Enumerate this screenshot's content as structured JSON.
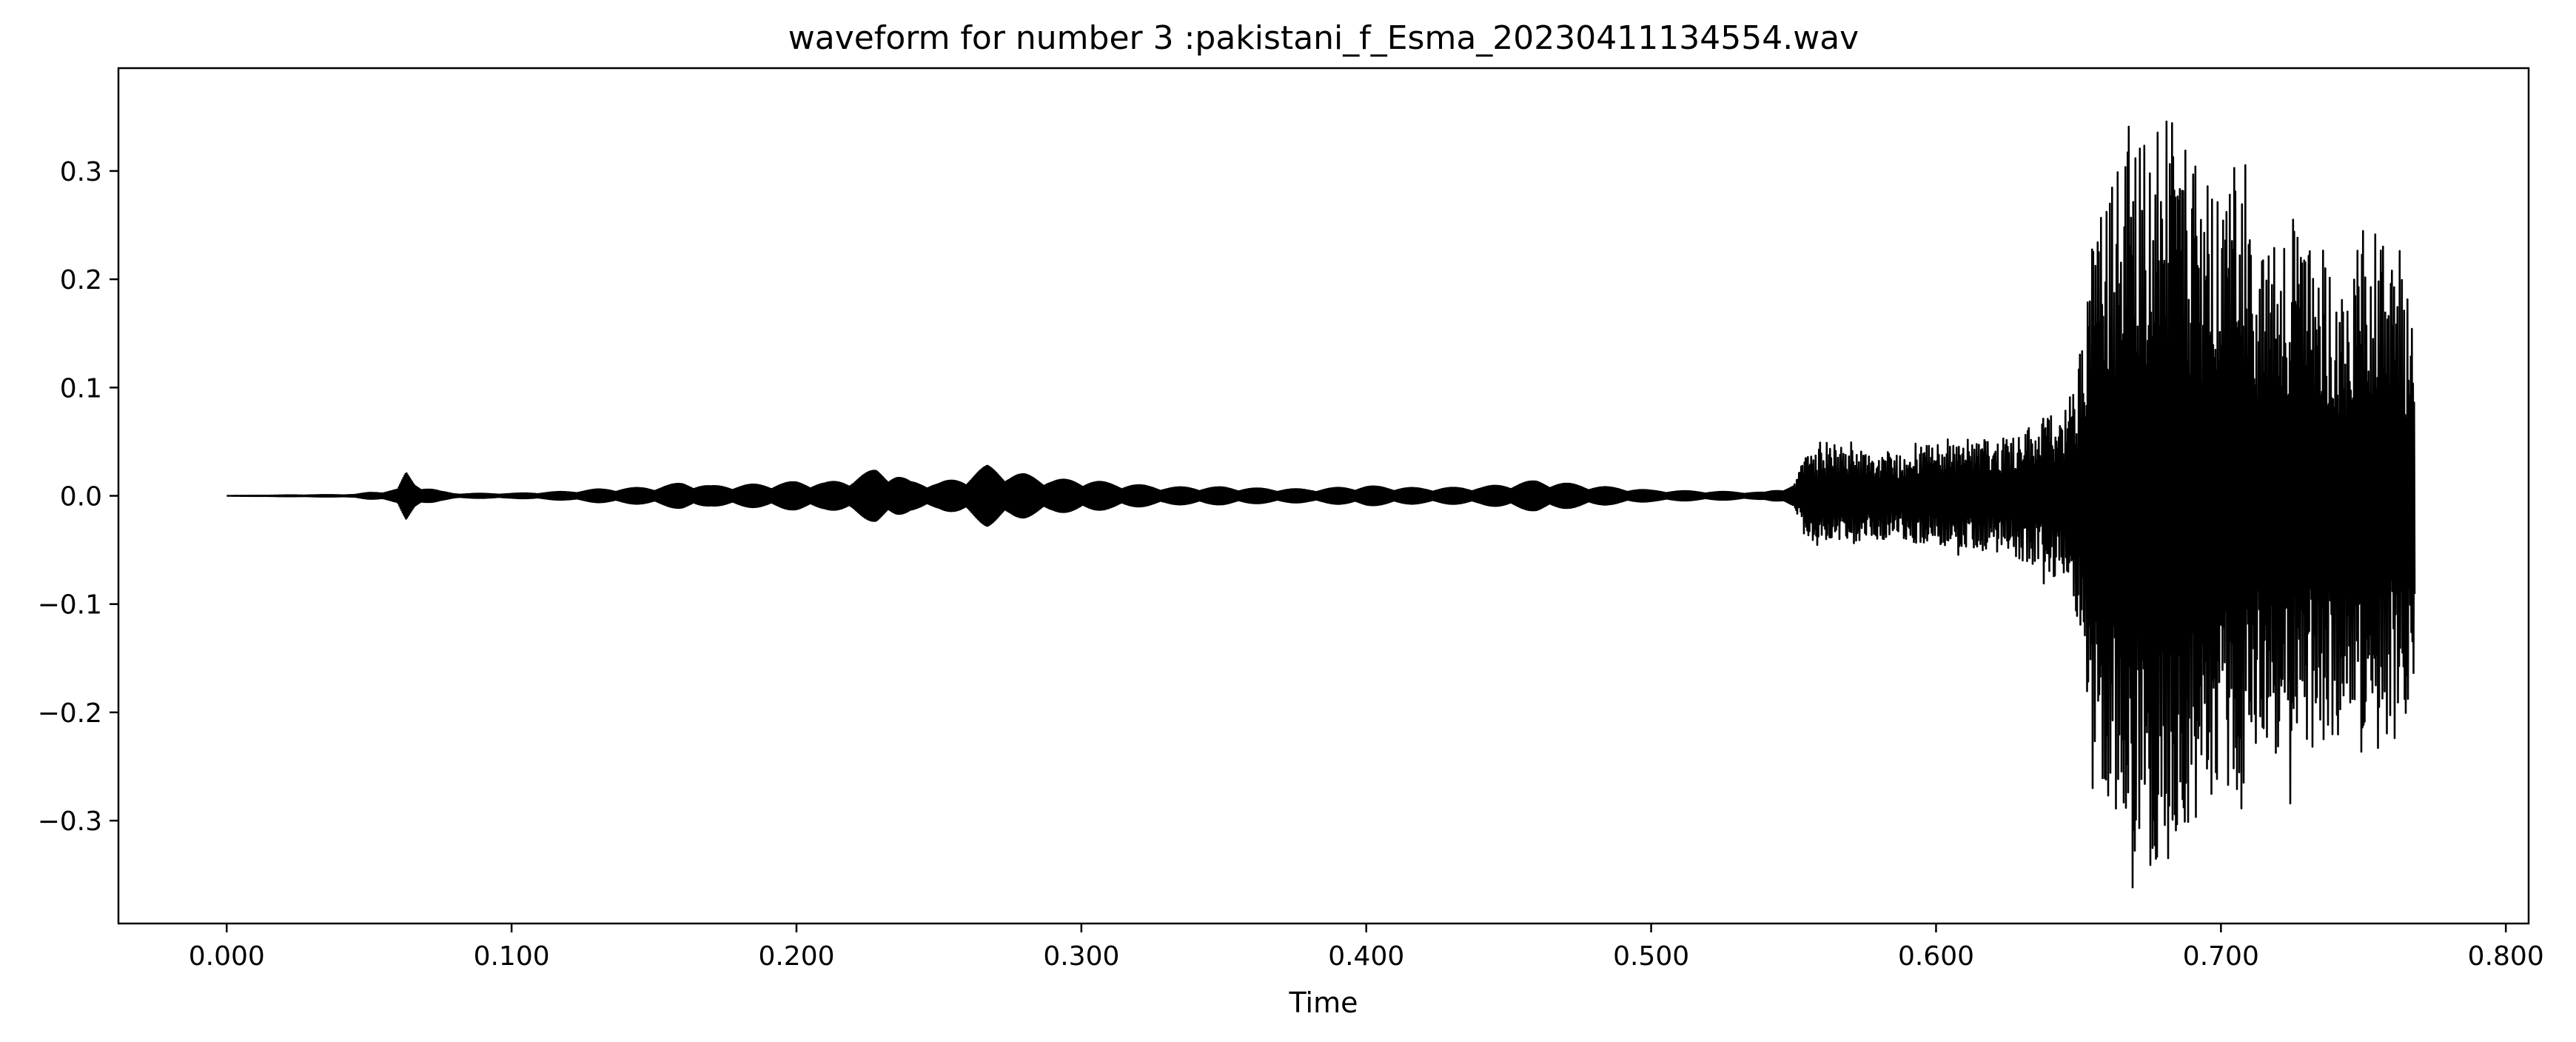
{
  "chart_data": {
    "type": "line",
    "title": "waveform for number 3 :pakistani_f_Esma_20230411134554.wav",
    "xlabel": "Time",
    "ylabel": "",
    "xlim": [
      -0.038,
      0.808
    ],
    "ylim": [
      -0.395,
      0.395
    ],
    "xticks": [
      0.0,
      0.1,
      0.2,
      0.3,
      0.4,
      0.5,
      0.6,
      0.7,
      0.8
    ],
    "xtick_labels": [
      "0.000",
      "0.100",
      "0.200",
      "0.300",
      "0.400",
      "0.500",
      "0.600",
      "0.700",
      "0.800"
    ],
    "yticks": [
      0.3,
      0.2,
      0.1,
      0.0,
      -0.1,
      -0.2,
      -0.3
    ],
    "ytick_labels": [
      "0.3",
      "0.2",
      "0.1",
      "0.0",
      "−0.1",
      "−0.2",
      "−0.3"
    ],
    "grid": false,
    "legend": "none",
    "line_color": "#000000",
    "duration": 0.768,
    "series": [
      {
        "envelope": {
          "x": [
            0.0,
            0.045,
            0.05,
            0.055,
            0.06,
            0.063,
            0.066,
            0.07,
            0.075,
            0.08,
            0.09,
            0.1,
            0.11,
            0.12,
            0.13,
            0.14,
            0.15,
            0.16,
            0.165,
            0.17,
            0.18,
            0.19,
            0.2,
            0.21,
            0.22,
            0.228,
            0.235,
            0.24,
            0.25,
            0.26,
            0.267,
            0.275,
            0.28,
            0.29,
            0.3,
            0.31,
            0.32,
            0.33,
            0.34,
            0.35,
            0.36,
            0.38,
            0.4,
            0.42,
            0.44,
            0.46,
            0.48,
            0.5,
            0.52,
            0.54,
            0.55,
            0.555,
            0.56,
            0.57,
            0.58,
            0.59,
            0.6,
            0.61,
            0.62,
            0.63,
            0.64,
            0.645,
            0.65,
            0.652,
            0.655,
            0.66,
            0.665,
            0.67,
            0.675,
            0.68,
            0.685,
            0.69,
            0.695,
            0.7,
            0.705,
            0.71,
            0.715,
            0.72,
            0.725,
            0.73,
            0.735,
            0.74,
            0.745,
            0.75,
            0.755,
            0.76,
            0.765,
            0.768
          ],
          "amplitude": [
            0.0,
            0.001,
            0.003,
            0.004,
            0.006,
            0.022,
            0.012,
            0.008,
            0.004,
            0.002,
            0.002,
            0.002,
            0.003,
            0.004,
            0.006,
            0.007,
            0.008,
            0.012,
            0.011,
            0.009,
            0.01,
            0.011,
            0.013,
            0.012,
            0.016,
            0.025,
            0.02,
            0.013,
            0.012,
            0.018,
            0.028,
            0.021,
            0.02,
            0.015,
            0.015,
            0.012,
            0.01,
            0.008,
            0.008,
            0.008,
            0.007,
            0.006,
            0.009,
            0.007,
            0.008,
            0.014,
            0.009,
            0.005,
            0.004,
            0.003,
            0.01,
            0.045,
            0.05,
            0.045,
            0.04,
            0.042,
            0.05,
            0.047,
            0.055,
            0.06,
            0.075,
            0.08,
            0.12,
            0.2,
            0.24,
            0.28,
            0.32,
            0.35,
            0.33,
            0.35,
            0.34,
            0.3,
            0.29,
            0.27,
            0.3,
            0.26,
            0.22,
            0.25,
            0.26,
            0.24,
            0.23,
            0.22,
            0.2,
            0.25,
            0.24,
            0.22,
            0.2,
            0.17
          ]
        }
      }
    ]
  }
}
